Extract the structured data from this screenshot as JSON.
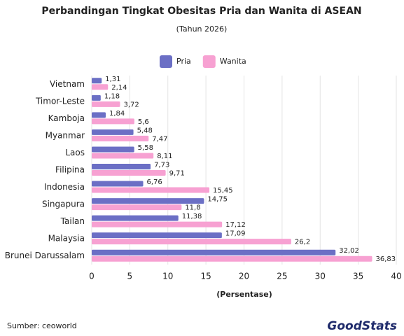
{
  "chart_data": {
    "type": "hbar",
    "title": "Perbandingan Tingkat Obesitas Pria dan Wanita di ASEAN",
    "subtitle": "(Tahun 2026)",
    "x_label": "(Persentase)",
    "categories": [
      "Vietnam",
      "Timor-Leste",
      "Kamboja",
      "Myanmar",
      "Laos",
      "Filipina",
      "Indonesia",
      "Singapura",
      "Tailan",
      "Malaysia",
      "Brunei Darussalam"
    ],
    "series": [
      {
        "name": "Pria",
        "color": "#6b6fc5",
        "values": [
          1.31,
          1.18,
          1.84,
          5.48,
          5.58,
          7.73,
          6.76,
          14.75,
          11.38,
          17.09,
          32.02
        ],
        "value_labels": [
          "1,31",
          "1,18",
          "1,84",
          "5,48",
          "5,58",
          "7,73",
          "6,76",
          "14,75",
          "11,38",
          "17,09",
          "32,02"
        ]
      },
      {
        "name": "Wanita",
        "color": "#f7a1d2",
        "values": [
          2.14,
          3.72,
          5.6,
          7.47,
          8.11,
          9.71,
          15.45,
          11.8,
          17.12,
          26.2,
          36.83
        ],
        "value_labels": [
          "2,14",
          "3,72",
          "5,6",
          "7,47",
          "8,11",
          "9,71",
          "15,45",
          "11,8",
          "17,12",
          "26,2",
          "36,83"
        ]
      }
    ],
    "xlim": [
      0,
      40
    ],
    "xticks": [
      0,
      5,
      10,
      15,
      20,
      25,
      30,
      35,
      40
    ],
    "grid": true,
    "legend": "top",
    "source": "Sumber: ceoworld",
    "logo": "GoodStats"
  }
}
